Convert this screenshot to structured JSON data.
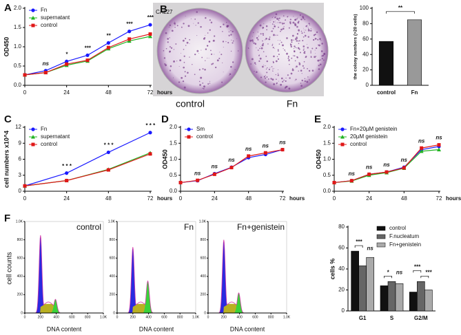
{
  "panel_letters": [
    "A",
    "B",
    "C",
    "D",
    "E",
    "F"
  ],
  "photo": {
    "label": "CAL27",
    "captions": [
      "control",
      "Fn"
    ]
  },
  "flow": {
    "panels": [
      "control",
      "Fn",
      "Fn+genistein"
    ],
    "xticks": [
      0,
      200,
      400,
      600,
      800,
      {
        "value": 1000,
        "label": "1.0K"
      }
    ],
    "yticks": [
      0,
      200,
      400,
      600,
      800,
      {
        "value": 1000,
        "label": "1.0K"
      }
    ],
    "xlim": [
      0,
      1000
    ],
    "ylim": [
      0,
      1000
    ],
    "xlabel": "DNA content",
    "ylabel": "cell counts"
  },
  "chart_data": [
    {
      "type": "line",
      "x": [
        0,
        12,
        24,
        36,
        48,
        60,
        72
      ],
      "xlim": [
        0,
        72
      ],
      "xticks": [
        0,
        24,
        48,
        72
      ],
      "ylim": [
        0,
        2
      ],
      "yticks": [
        {
          "value": 0,
          "label": "0.0"
        },
        {
          "value": 0.5,
          "label": "0.5"
        },
        {
          "value": 1,
          "label": "1.0"
        },
        {
          "value": 1.5,
          "label": "1.5"
        },
        {
          "value": 2,
          "label": "2.0"
        }
      ],
      "xlabel": "hours",
      "ylabel": "OD450",
      "series": [
        {
          "name": "Fn",
          "color": "#1a1aff",
          "marker": "circle",
          "values": [
            0.27,
            0.38,
            0.62,
            0.78,
            1.1,
            1.4,
            1.57
          ]
        },
        {
          "name": "supernatant",
          "color": "#22b422",
          "marker": "triangle",
          "values": [
            0.27,
            0.33,
            0.52,
            0.63,
            0.95,
            1.15,
            1.27
          ]
        },
        {
          "name": "control",
          "color": "#e01818",
          "marker": "square",
          "values": [
            0.27,
            0.33,
            0.55,
            0.65,
            0.98,
            1.2,
            1.33
          ]
        }
      ],
      "annotations": [
        {
          "x": 12,
          "text": "ns"
        },
        {
          "x": 24,
          "text": "*"
        },
        {
          "x": 36,
          "text": "***"
        },
        {
          "x": 48,
          "text": "**"
        },
        {
          "x": 60,
          "text": "***"
        },
        {
          "x": 72,
          "text": "***"
        }
      ]
    },
    {
      "type": "bar",
      "categories": [
        "control",
        "Fn"
      ],
      "values": [
        57,
        85
      ],
      "colors": [
        "#111111",
        "#999999"
      ],
      "ylim": [
        0,
        100
      ],
      "yticks": [
        0,
        20,
        40,
        60,
        80,
        100
      ],
      "ylabel": "the colony numbers (>20 cells)",
      "annotations": [
        "**"
      ]
    },
    {
      "type": "line",
      "x": [
        0,
        24,
        48,
        72
      ],
      "xlim": [
        0,
        72
      ],
      "xticks": [
        0,
        24,
        48,
        72
      ],
      "ylim": [
        0,
        12
      ],
      "yticks": [
        0,
        3,
        6,
        9,
        12
      ],
      "xlabel": "hours",
      "ylabel": "cell numbers x10^4",
      "series": [
        {
          "name": "Fn",
          "color": "#1a1aff",
          "marker": "circle",
          "values": [
            1,
            3.4,
            7.3,
            11
          ]
        },
        {
          "name": "supernatant",
          "color": "#22b422",
          "marker": "triangle",
          "values": [
            1,
            2,
            4.1,
            7.2
          ]
        },
        {
          "name": "control",
          "color": "#e01818",
          "marker": "square",
          "values": [
            1,
            2,
            4,
            7
          ]
        }
      ],
      "annotations": [
        {
          "x": 24,
          "text": "* * *"
        },
        {
          "x": 48,
          "text": "* * *"
        },
        {
          "x": 72,
          "text": "* * *"
        }
      ]
    },
    {
      "type": "line",
      "x": [
        0,
        12,
        24,
        36,
        48,
        60,
        72
      ],
      "xlim": [
        0,
        72
      ],
      "xticks": [
        0,
        24,
        48,
        72
      ],
      "ylim": [
        0,
        2
      ],
      "yticks": [
        {
          "value": 0,
          "label": "0.0"
        },
        {
          "value": 0.5,
          "label": "0.5"
        },
        {
          "value": 1,
          "label": "1.0"
        },
        {
          "value": 1.5,
          "label": "1.5"
        },
        {
          "value": 2,
          "label": "2.0"
        }
      ],
      "xlabel": "hours",
      "ylabel": "OD450",
      "series": [
        {
          "name": "Sm",
          "color": "#1a1aff",
          "marker": "circle",
          "values": [
            0.27,
            0.33,
            0.55,
            0.75,
            1.05,
            1.15,
            1.3
          ]
        },
        {
          "name": "control",
          "color": "#e01818",
          "marker": "square",
          "values": [
            0.27,
            0.34,
            0.53,
            0.74,
            1.1,
            1.2,
            1.3
          ]
        }
      ],
      "annotations": [
        {
          "x": 12,
          "text": "ns"
        },
        {
          "x": 24,
          "text": "ns"
        },
        {
          "x": 36,
          "text": "ns"
        },
        {
          "x": 48,
          "text": "ns"
        },
        {
          "x": 60,
          "text": "ns"
        },
        {
          "x": 72,
          "text": "ns"
        }
      ]
    },
    {
      "type": "line",
      "x": [
        0,
        12,
        24,
        36,
        48,
        60,
        72
      ],
      "xlim": [
        0,
        72
      ],
      "xticks": [
        0,
        24,
        48,
        72
      ],
      "ylim": [
        0,
        2
      ],
      "yticks": [
        {
          "value": 0,
          "label": "0.0"
        },
        {
          "value": 0.5,
          "label": "0.5"
        },
        {
          "value": 1,
          "label": "1.0"
        },
        {
          "value": 1.5,
          "label": "1.5"
        },
        {
          "value": 2,
          "label": "2.0"
        }
      ],
      "xlabel": "hours",
      "ylabel": "OD450",
      "series": [
        {
          "name": "Fn+20µM genistein",
          "color": "#1a1aff",
          "marker": "circle",
          "values": [
            0.27,
            0.33,
            0.53,
            0.6,
            0.75,
            1.3,
            1.4
          ]
        },
        {
          "name": "20µM genistein",
          "color": "#22b422",
          "marker": "triangle",
          "values": [
            0.27,
            0.32,
            0.5,
            0.58,
            0.72,
            1.25,
            1.3
          ]
        },
        {
          "name": "control",
          "color": "#e01818",
          "marker": "square",
          "values": [
            0.27,
            0.33,
            0.53,
            0.6,
            0.73,
            1.35,
            1.45
          ]
        }
      ],
      "annotations": [
        {
          "x": 12,
          "text": "ns"
        },
        {
          "x": 24,
          "text": "ns"
        },
        {
          "x": 36,
          "text": "ns"
        },
        {
          "x": 48,
          "text": "ns"
        },
        {
          "x": 60,
          "text": "ns"
        },
        {
          "x": 72,
          "text": "ns"
        }
      ]
    },
    {
      "type": "bar",
      "categories": [
        "G1",
        "S",
        "G2/M"
      ],
      "ylim": [
        0,
        80
      ],
      "yticks": [
        0,
        20,
        40,
        60,
        80
      ],
      "ylabel": "cells %",
      "series": [
        {
          "name": "control",
          "color": "#111111",
          "values": [
            57,
            24,
            18
          ]
        },
        {
          "name": "F.nucleatum",
          "color": "#666666",
          "values": [
            43,
            28,
            28
          ]
        },
        {
          "name": "Fn+genistein",
          "color": "#aaaaaa",
          "values": [
            51,
            26,
            20
          ]
        }
      ],
      "annotations": [
        [
          "***",
          "ns"
        ],
        [
          "*",
          "ns"
        ],
        [
          "***",
          "***"
        ]
      ]
    }
  ]
}
